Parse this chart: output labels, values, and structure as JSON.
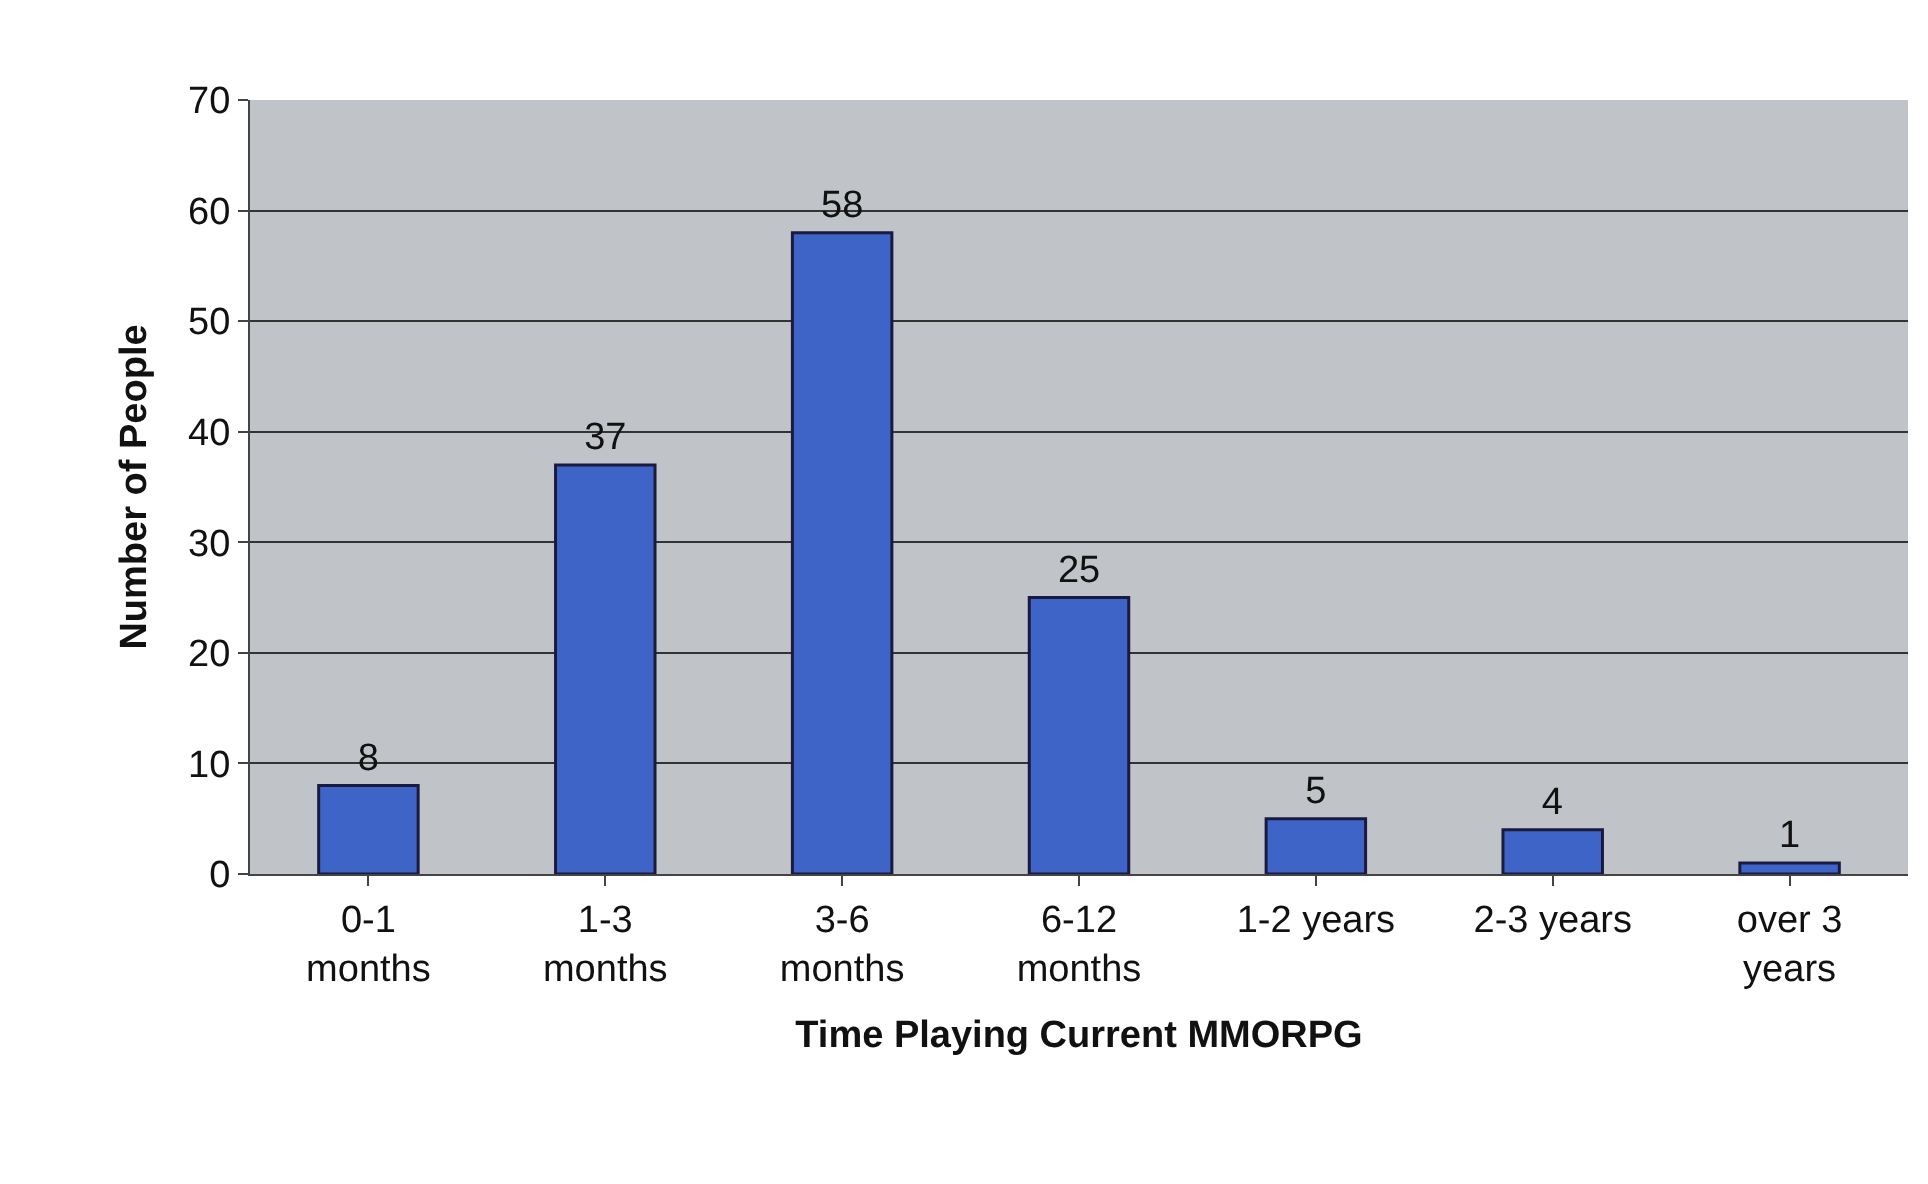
{
  "chart_data": {
    "type": "bar",
    "xlabel": "Time Playing Current MMORPG",
    "ylabel": "Number of People",
    "categories": [
      "0-1\nmonths",
      "1-3\nmonths",
      "3-6\nmonths",
      "6-12\nmonths",
      "1-2 years",
      "2-3 years",
      "over 3\nyears"
    ],
    "values": [
      8,
      37,
      58,
      25,
      5,
      4,
      1
    ],
    "color": "#3f64c8",
    "ylim": [
      0,
      70
    ],
    "yticks": [
      0,
      10,
      20,
      30,
      40,
      50,
      60,
      70
    ],
    "grid": "y",
    "data_labels": true,
    "legend": false
  }
}
